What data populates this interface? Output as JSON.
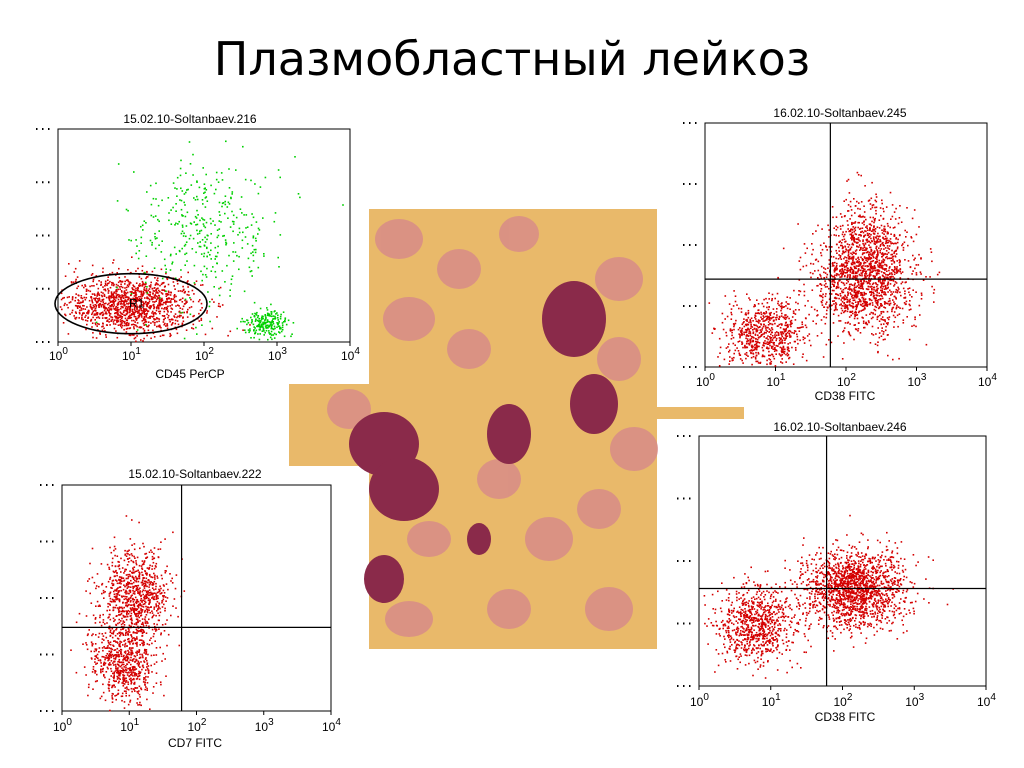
{
  "slide": {
    "title": "Плазмобластный лейкоз"
  },
  "colors": {
    "gated": "#d40000",
    "ungated": "#00d000",
    "micro_bg": "#e9b96a",
    "rbc": "#d7898a",
    "blast": "#8a2a4a"
  },
  "micrograph": {
    "label": ""
  },
  "chart_data": [
    {
      "id": "plot-216",
      "type": "scatter",
      "title": "15.02.10-Soltanbaev.216",
      "xlabel": "CD45 PerCP",
      "xscale": "log",
      "xlim": [
        1,
        10000
      ],
      "xticks": [
        "10",
        "10",
        "10",
        "10",
        "10"
      ],
      "xticks_exp": [
        "0",
        "1",
        "2",
        "3",
        "4"
      ],
      "gate": {
        "name": "R1",
        "shape": "ellipse"
      },
      "series": [
        {
          "color": "red",
          "clusters": [
            {
              "x": 10,
              "spread": 0.45,
              "y": 0.18,
              "yspread": 0.07,
              "n": 1300,
              "shape": "ellipse"
            }
          ]
        },
        {
          "color": "green",
          "clusters": [
            {
              "x": 700,
              "spread": 0.15,
              "y": 0.09,
              "yspread": 0.03,
              "n": 220
            },
            {
              "x": 100,
              "spread": 0.5,
              "y": 0.52,
              "yspread": 0.18,
              "n": 380
            }
          ]
        }
      ]
    },
    {
      "id": "plot-245",
      "type": "scatter",
      "title": "16.02.10-Soltanbaev.245",
      "xlabel": "CD38 FITC",
      "xscale": "log",
      "xlim": [
        1,
        10000
      ],
      "xticks": [
        "10",
        "10",
        "10",
        "10",
        "10"
      ],
      "xticks_exp": [
        "0",
        "1",
        "2",
        "3",
        "4"
      ],
      "quadrant": {
        "x": 60,
        "y": 0.36
      },
      "series": [
        {
          "color": "red",
          "clusters": [
            {
              "x": 7,
              "spread": 0.3,
              "y": 0.14,
              "yspread": 0.07,
              "n": 700
            },
            {
              "x": 180,
              "spread": 0.35,
              "y": 0.36,
              "yspread": 0.11,
              "n": 1400
            },
            {
              "x": 200,
              "spread": 0.25,
              "y": 0.55,
              "yspread": 0.09,
              "n": 300
            }
          ]
        }
      ]
    },
    {
      "id": "plot-222",
      "type": "scatter",
      "title": "15.02.10-Soltanbaev.222",
      "xlabel": "CD7 FITC",
      "xscale": "log",
      "xlim": [
        1,
        10000
      ],
      "xticks": [
        "10",
        "10",
        "10",
        "10",
        "10"
      ],
      "xticks_exp": [
        "0",
        "1",
        "2",
        "3",
        "4"
      ],
      "quadrant": {
        "x": 60,
        "y": 0.37
      },
      "series": [
        {
          "color": "red",
          "clusters": [
            {
              "x": 12,
              "spread": 0.25,
              "y": 0.52,
              "yspread": 0.1,
              "n": 800
            },
            {
              "x": 8,
              "spread": 0.25,
              "y": 0.22,
              "yspread": 0.1,
              "n": 700
            }
          ]
        }
      ]
    },
    {
      "id": "plot-246",
      "type": "scatter",
      "title": "16.02.10-Soltanbaev.246",
      "xlabel": "CD38 FITC",
      "xscale": "log",
      "xlim": [
        1,
        10000
      ],
      "xticks": [
        "10",
        "10",
        "10",
        "10",
        "10"
      ],
      "xticks_exp": [
        "0",
        "1",
        "2",
        "3",
        "4"
      ],
      "quadrant": {
        "x": 60,
        "y": 0.39
      },
      "series": [
        {
          "color": "red",
          "clusters": [
            {
              "x": 6,
              "spread": 0.3,
              "y": 0.25,
              "yspread": 0.08,
              "n": 800
            },
            {
              "x": 150,
              "spread": 0.35,
              "y": 0.39,
              "yspread": 0.08,
              "n": 1600
            }
          ]
        }
      ]
    }
  ]
}
